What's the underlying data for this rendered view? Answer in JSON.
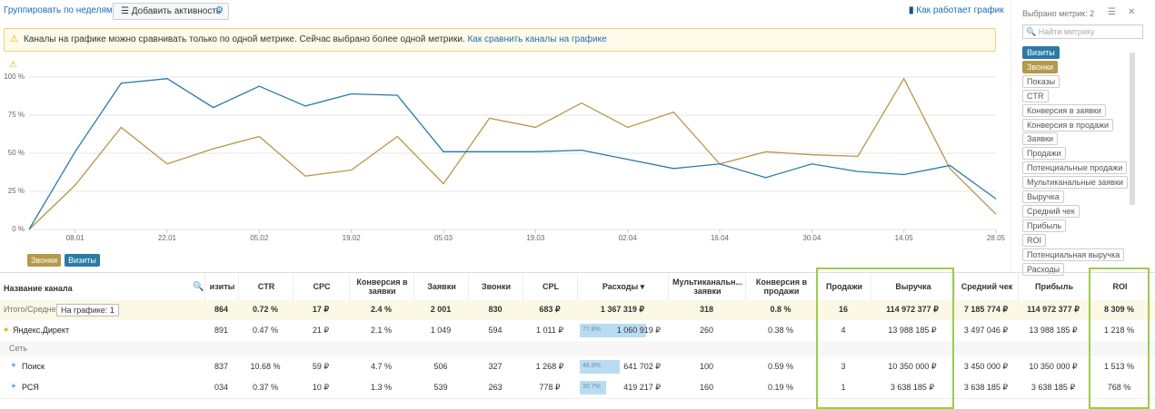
{
  "toolbar": {
    "group": "Группировать по неделям",
    "add_activity": "Добавить активность",
    "how": "Как работает график"
  },
  "warning": {
    "text": "Каналы на графике можно сравнивать только по одной метрике. Сейчас выбрано более одной метрики.",
    "link": "Как сравнить каналы на графике"
  },
  "chart_data": {
    "type": "line",
    "categories": [
      null,
      "08.01",
      null,
      "22.01",
      null,
      "05.02",
      null,
      "19.02",
      null,
      "05.03",
      null,
      "19.03",
      null,
      "02.04",
      null,
      "16.04",
      null,
      "30.04",
      null,
      "14.05",
      null,
      "28.05"
    ],
    "series": [
      {
        "name": "Звонки",
        "color": "#b5984a",
        "values": [
          0,
          29,
          67,
          43,
          53,
          61,
          35,
          39,
          61,
          30,
          73,
          67,
          83,
          67,
          77,
          43,
          51,
          49,
          48,
          99,
          40,
          10
        ]
      },
      {
        "name": "Визиты",
        "color": "#2a7aa6",
        "values": [
          0,
          51,
          96,
          99,
          80,
          94,
          81,
          89,
          88,
          51,
          51,
          51,
          52,
          46,
          40,
          43,
          34,
          43,
          38,
          36,
          42,
          20
        ]
      }
    ],
    "ylim": [
      0,
      100
    ],
    "yticks": [
      {
        "value": 0,
        "label": "0 %"
      },
      {
        "value": 25,
        "label": "25 %"
      },
      {
        "value": 50,
        "label": "50 %"
      },
      {
        "value": 75,
        "label": "75 %"
      },
      {
        "value": 100,
        "label": "100 %"
      }
    ],
    "grid": true
  },
  "metrics": {
    "title": "Выбрано метрик: 2",
    "search": "Найти метрику",
    "items": [
      {
        "label": "Визиты",
        "color": "#2a7aa6"
      },
      {
        "label": "Звонки",
        "color": "#b5984a"
      },
      {
        "label": "Показы"
      },
      {
        "label": "CTR"
      },
      {
        "label": "Конверсия в заявки"
      },
      {
        "label": "Конверсия в продажи"
      },
      {
        "label": "Заявки"
      },
      {
        "label": "Продажи"
      },
      {
        "label": "Потенциальные продажи"
      },
      {
        "label": "Мультиканальные заявки"
      },
      {
        "label": "Выручка"
      },
      {
        "label": "Средний чек"
      },
      {
        "label": "Прибыль"
      },
      {
        "label": "ROI"
      },
      {
        "label": "Потенциальная выручка"
      },
      {
        "label": "Расходы"
      }
    ]
  },
  "table": {
    "name_header": "Название канала",
    "on_chart": "На графике: 1",
    "columns": [
      "изиты",
      "CTR",
      "CPC",
      "Конверсия в заявки",
      "Заявки",
      "Звонки",
      "CPL",
      "Расходы ▾",
      "Мультиканальн... заявки",
      "Конверсия в продажи",
      "Продажи",
      "Выручка",
      "Средний чек",
      "Прибыль",
      "ROI"
    ],
    "rows": [
      {
        "name": "Итого/Среднее",
        "cells": [
          "864",
          "0.72 %",
          "17 ₽",
          "2.4 %",
          "2 001",
          "830",
          "683 ₽",
          {
            "text": "1 367 319 ₽"
          },
          "318",
          "0.8 %",
          "16",
          "114 972 377 ₽",
          "7 185 774 ₽",
          "114 972 377 ₽",
          "8 309 %"
        ]
      },
      {
        "name": "Яндекс.Директ",
        "cells": [
          "891",
          "0.47 %",
          "21 ₽",
          "2.1 %",
          "1 049",
          "594",
          "1 011 ₽",
          {
            "share": 77.8,
            "share_label": "77.8%",
            "text": "1 060 919 ₽"
          },
          "260",
          "0.38 %",
          "4",
          "13 988 185 ₽",
          "3 497 046 ₽",
          "13 988 185 ₽",
          "1 218 %"
        ]
      },
      {
        "name": "Сеть",
        "cells": []
      },
      {
        "name": "Поиск",
        "cells": [
          "837",
          "10.68 %",
          "59 ₽",
          "4.7 %",
          "506",
          "327",
          "1 268 ₽",
          {
            "share": 46.9,
            "share_label": "46.9%",
            "text": "641 702 ₽"
          },
          "100",
          "0.59 %",
          "3",
          "10 350 000 ₽",
          "3 450 000 ₽",
          "10 350 000 ₽",
          "1 513 %"
        ]
      },
      {
        "name": "РСЯ",
        "cells": [
          "034",
          "0.37 %",
          "10 ₽",
          "1.3 %",
          "539",
          "263",
          "778 ₽",
          {
            "share": 30.7,
            "share_label": "30.7%",
            "text": "419 217 ₽"
          },
          "160",
          "0.19 %",
          "1",
          "3 638 185 ₽",
          "3 638 185 ₽",
          "3 638 185 ₽",
          "768 %"
        ]
      }
    ]
  }
}
